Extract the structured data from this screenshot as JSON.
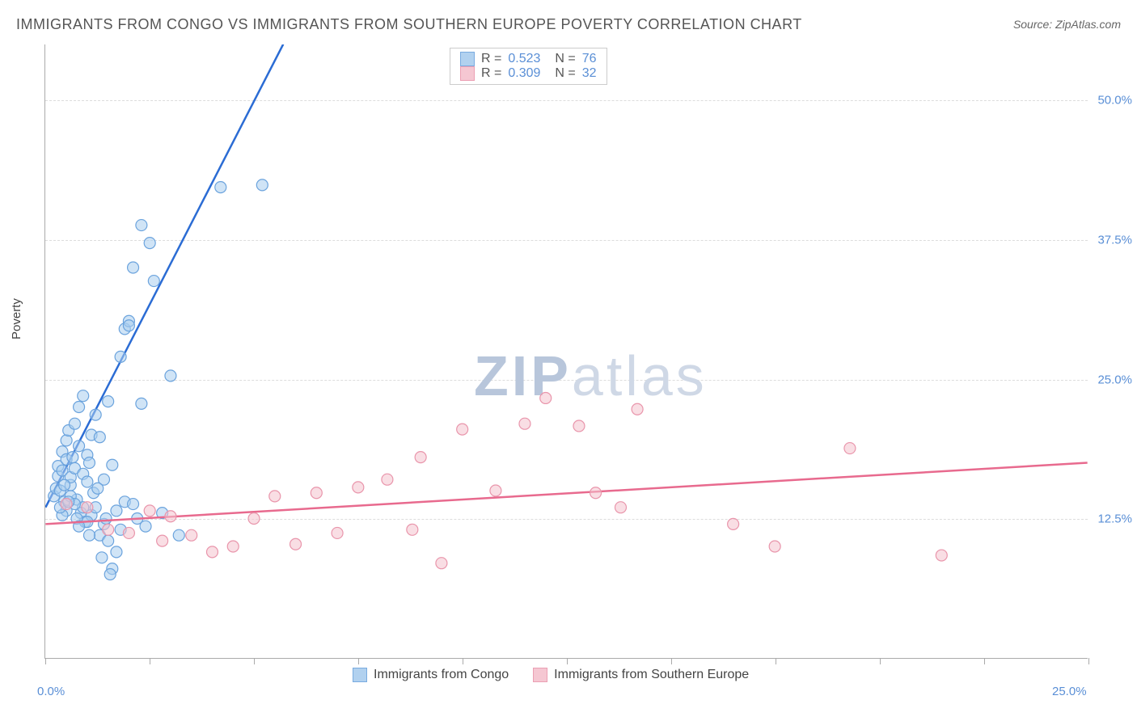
{
  "title": "IMMIGRANTS FROM CONGO VS IMMIGRANTS FROM SOUTHERN EUROPE POVERTY CORRELATION CHART",
  "source": "Source: ZipAtlas.com",
  "ylabel": "Poverty",
  "watermark_bold": "ZIP",
  "watermark_thin": "atlas",
  "chart": {
    "type": "scatter",
    "xlim": [
      0,
      25
    ],
    "ylim": [
      0,
      55
    ],
    "yticks": [
      {
        "v": 12.5,
        "label": "12.5%"
      },
      {
        "v": 25.0,
        "label": "25.0%"
      },
      {
        "v": 37.5,
        "label": "37.5%"
      },
      {
        "v": 50.0,
        "label": "50.0%"
      }
    ],
    "xticks_major": [
      0,
      25
    ],
    "xticks_minor": [
      2.5,
      5,
      7.5,
      10,
      12.5,
      15,
      17.5,
      20,
      22.5
    ],
    "xtick_labels": {
      "0": "0.0%",
      "25": "25.0%"
    },
    "background": "#ffffff",
    "grid_color": "#dddddd",
    "axis_color": "#aaaaaa",
    "text_color": "#555555",
    "tick_label_color": "#5a8fd6",
    "marker_radius": 7,
    "marker_stroke_width": 1.2,
    "trend_stroke_width": 2.5
  },
  "series": [
    {
      "name": "Immigrants from Congo",
      "fill": "#a9cdee",
      "stroke": "#6ba3dd",
      "fill_opacity": 0.55,
      "trend_color": "#2b6cd4",
      "R": "0.523",
      "N": "76",
      "trend": {
        "x1": 0,
        "y1": 13.5,
        "x2": 5.7,
        "y2": 55,
        "dash_extend": true,
        "dash_x2": 6.6
      },
      "points": [
        [
          0.2,
          14.5
        ],
        [
          0.25,
          15.2
        ],
        [
          0.3,
          16.3
        ],
        [
          0.3,
          17.2
        ],
        [
          0.35,
          15.0
        ],
        [
          0.4,
          16.8
        ],
        [
          0.4,
          18.5
        ],
        [
          0.45,
          14.0
        ],
        [
          0.5,
          19.5
        ],
        [
          0.5,
          17.8
        ],
        [
          0.55,
          20.4
        ],
        [
          0.6,
          15.5
        ],
        [
          0.6,
          16.2
        ],
        [
          0.65,
          18.0
        ],
        [
          0.7,
          21.0
        ],
        [
          0.7,
          17.0
        ],
        [
          0.75,
          14.2
        ],
        [
          0.8,
          19.0
        ],
        [
          0.8,
          22.5
        ],
        [
          0.85,
          13.0
        ],
        [
          0.9,
          16.5
        ],
        [
          0.9,
          23.5
        ],
        [
          0.95,
          12.2
        ],
        [
          1.0,
          18.2
        ],
        [
          1.0,
          15.8
        ],
        [
          1.05,
          17.5
        ],
        [
          1.1,
          20.0
        ],
        [
          1.1,
          12.8
        ],
        [
          1.15,
          14.8
        ],
        [
          1.2,
          21.8
        ],
        [
          1.2,
          13.5
        ],
        [
          1.3,
          11.0
        ],
        [
          1.3,
          19.8
        ],
        [
          1.4,
          12.0
        ],
        [
          1.4,
          16.0
        ],
        [
          1.5,
          23.0
        ],
        [
          1.5,
          10.5
        ],
        [
          1.6,
          17.3
        ],
        [
          1.6,
          8.0
        ],
        [
          1.7,
          13.2
        ],
        [
          1.7,
          9.5
        ],
        [
          1.8,
          27.0
        ],
        [
          1.8,
          11.5
        ],
        [
          1.9,
          29.5
        ],
        [
          1.9,
          14.0
        ],
        [
          2.0,
          30.2
        ],
        [
          2.0,
          29.8
        ],
        [
          2.1,
          13.8
        ],
        [
          2.1,
          35.0
        ],
        [
          2.2,
          12.5
        ],
        [
          2.3,
          38.8
        ],
        [
          2.3,
          22.8
        ],
        [
          2.4,
          11.8
        ],
        [
          2.5,
          37.2
        ],
        [
          2.6,
          33.8
        ],
        [
          2.8,
          13.0
        ],
        [
          3.0,
          25.3
        ],
        [
          3.2,
          11.0
        ],
        [
          1.35,
          9.0
        ],
        [
          1.45,
          12.5
        ],
        [
          0.9,
          13.5
        ],
        [
          1.0,
          12.2
        ],
        [
          0.6,
          14.5
        ],
        [
          0.5,
          13.2
        ],
        [
          0.4,
          12.8
        ],
        [
          0.35,
          13.5
        ],
        [
          0.7,
          13.8
        ],
        [
          0.75,
          12.5
        ],
        [
          0.8,
          11.8
        ],
        [
          1.05,
          11.0
        ],
        [
          1.55,
          7.5
        ],
        [
          4.2,
          42.2
        ],
        [
          5.2,
          42.4
        ],
        [
          1.25,
          15.2
        ],
        [
          0.55,
          14.0
        ],
        [
          0.45,
          15.5
        ]
      ]
    },
    {
      "name": "Immigrants from Southern Europe",
      "fill": "#f4c2ce",
      "stroke": "#e995ab",
      "fill_opacity": 0.55,
      "trend_color": "#e86a8e",
      "R": "0.309",
      "N": "32",
      "trend": {
        "x1": 0,
        "y1": 12.0,
        "x2": 25,
        "y2": 17.5,
        "dash_extend": false
      },
      "points": [
        [
          0.5,
          13.8
        ],
        [
          1.0,
          13.5
        ],
        [
          1.5,
          11.5
        ],
        [
          2.0,
          11.2
        ],
        [
          2.5,
          13.2
        ],
        [
          2.8,
          10.5
        ],
        [
          3.0,
          12.7
        ],
        [
          3.5,
          11.0
        ],
        [
          4.0,
          9.5
        ],
        [
          4.5,
          10.0
        ],
        [
          5.0,
          12.5
        ],
        [
          5.5,
          14.5
        ],
        [
          6.0,
          10.2
        ],
        [
          6.5,
          14.8
        ],
        [
          7.0,
          11.2
        ],
        [
          7.5,
          15.3
        ],
        [
          8.2,
          16.0
        ],
        [
          8.8,
          11.5
        ],
        [
          9.0,
          18.0
        ],
        [
          9.5,
          8.5
        ],
        [
          10.0,
          20.5
        ],
        [
          10.8,
          15.0
        ],
        [
          11.5,
          21.0
        ],
        [
          12.0,
          23.3
        ],
        [
          12.8,
          20.8
        ],
        [
          13.2,
          14.8
        ],
        [
          13.8,
          13.5
        ],
        [
          14.2,
          22.3
        ],
        [
          16.5,
          12.0
        ],
        [
          17.5,
          10.0
        ],
        [
          19.3,
          18.8
        ],
        [
          21.5,
          9.2
        ]
      ]
    }
  ],
  "legend_top": {
    "r_label": "R =",
    "n_label": "N ="
  },
  "legend_bottom": {
    "s1": "Immigrants from Congo",
    "s2": "Immigrants from Southern Europe"
  }
}
